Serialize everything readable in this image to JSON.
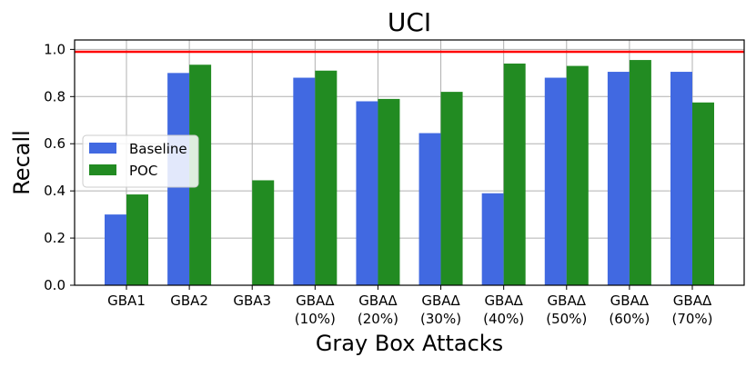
{
  "chart_data": {
    "type": "bar",
    "title": "UCI",
    "xlabel": "Gray Box Attacks",
    "ylabel": "Recall",
    "ylim": [
      0,
      1.04
    ],
    "yticks": [
      0.0,
      0.2,
      0.4,
      0.6,
      0.8,
      1.0
    ],
    "ytick_labels": [
      "0.0",
      "0.2",
      "0.4",
      "0.6",
      "0.8",
      "1.0"
    ],
    "grid": true,
    "legend_position": "center-left",
    "categories": [
      [
        "GBA1"
      ],
      [
        "GBA2"
      ],
      [
        "GBA3"
      ],
      [
        "GBAΔ",
        "(10%)"
      ],
      [
        "GBAΔ",
        "(20%)"
      ],
      [
        "GBAΔ",
        "(30%)"
      ],
      [
        "GBAΔ",
        "(40%)"
      ],
      [
        "GBAΔ",
        "(50%)"
      ],
      [
        "GBAΔ",
        "(60%)"
      ],
      [
        "GBAΔ",
        "(70%)"
      ]
    ],
    "series": [
      {
        "name": "Baseline",
        "color": "#4169e1",
        "values": [
          0.3,
          0.9,
          0.0,
          0.88,
          0.78,
          0.645,
          0.39,
          0.88,
          0.905,
          0.905
        ]
      },
      {
        "name": "POC",
        "color": "#228b22",
        "values": [
          0.385,
          0.935,
          0.445,
          0.91,
          0.79,
          0.82,
          0.94,
          0.93,
          0.955,
          0.775
        ]
      }
    ],
    "reference_line": {
      "y": 0.99,
      "color": "#ff0000"
    }
  }
}
